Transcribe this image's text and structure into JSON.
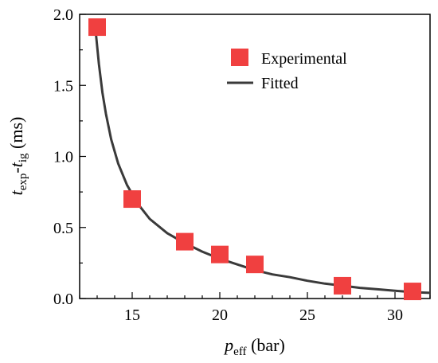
{
  "chart_data": {
    "type": "scatter",
    "series": [
      {
        "name": "Experimental",
        "kind": "points",
        "color": "#f04040",
        "x": [
          13,
          15,
          18,
          20,
          22,
          27,
          31
        ],
        "y": [
          1.91,
          0.7,
          0.4,
          0.31,
          0.24,
          0.09,
          0.05
        ]
      },
      {
        "name": "Fitted",
        "kind": "line",
        "color": "#3a3a3a",
        "x": [
          12.9,
          13.1,
          13.3,
          13.5,
          13.8,
          14.2,
          14.7,
          15.3,
          16,
          17,
          18,
          19,
          20,
          21,
          22,
          23,
          24,
          25,
          26,
          27,
          28,
          29,
          30,
          31,
          32
        ],
        "y": [
          1.9,
          1.65,
          1.45,
          1.3,
          1.12,
          0.95,
          0.8,
          0.67,
          0.56,
          0.46,
          0.39,
          0.33,
          0.28,
          0.24,
          0.2,
          0.17,
          0.15,
          0.125,
          0.105,
          0.09,
          0.075,
          0.065,
          0.055,
          0.045,
          0.04
        ]
      }
    ],
    "xlabel": {
      "main": "p",
      "sub": "eff",
      "unit": " (bar)"
    },
    "ylabel": {
      "t1": "t",
      "sub1": "exp",
      "dash": "-",
      "t2": "t",
      "sub2": "ig",
      "unit": " (ms)"
    },
    "xlim": [
      12,
      32
    ],
    "ylim": [
      0.0,
      2.0
    ],
    "xticks": [
      "15",
      "20",
      "25",
      "30"
    ],
    "xtick_values": [
      15,
      20,
      25,
      30
    ],
    "yticks": [
      "0.0",
      "0.5",
      "1.0",
      "1.5",
      "2.0"
    ],
    "ytick_values": [
      0.0,
      0.5,
      1.0,
      1.5,
      2.0
    ],
    "legend_position": "top-right",
    "grid": false
  }
}
